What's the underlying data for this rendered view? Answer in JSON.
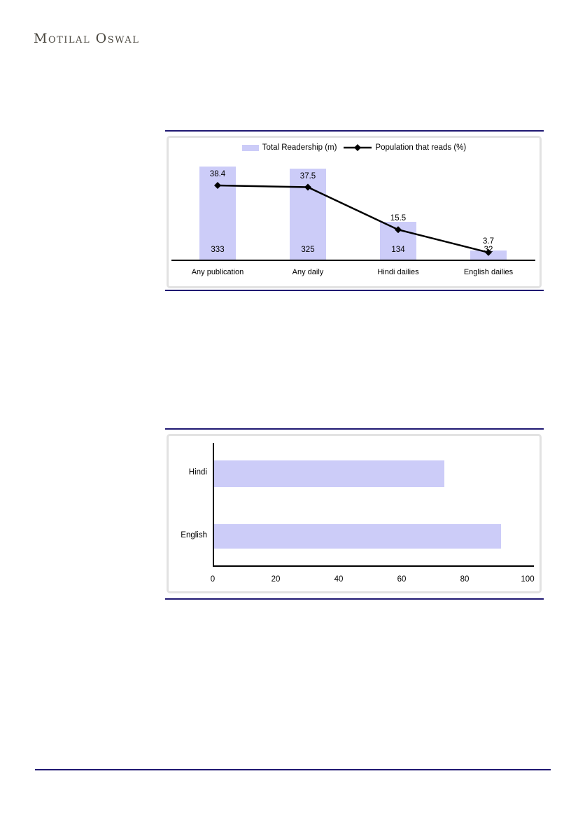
{
  "logo": {
    "text": "Motilal Oswal"
  },
  "colors": {
    "accent_navy": "#1f1872",
    "bar_fill": "#ccccf8",
    "frame_border": "#e2e2e2",
    "line_series": "#000000",
    "logo_text": "#4a473f"
  },
  "chart_data": [
    {
      "type": "bar",
      "subtype": "combo-bar-line",
      "categories": [
        "Any publication",
        "Any daily",
        "Hindi dailies",
        "English dailies"
      ],
      "series": [
        {
          "name": "Total Readership (m)",
          "type": "bar",
          "color": "#ccccf8",
          "values": [
            333,
            325,
            134,
            32
          ]
        },
        {
          "name": "Population that reads (%)",
          "type": "line",
          "color": "#000000",
          "marker": "diamond",
          "values": [
            38.4,
            37.5,
            15.5,
            3.7
          ]
        }
      ],
      "legend_position": "top",
      "grid": false,
      "data_labels": true
    },
    {
      "type": "bar",
      "orientation": "horizontal",
      "categories": [
        "Hindi",
        "English"
      ],
      "values": [
        73,
        91
      ],
      "bar_color": "#ccccf8",
      "xlim": [
        0,
        100
      ],
      "xticks": [
        0,
        20,
        40,
        60,
        80,
        100
      ],
      "grid": false,
      "data_labels": false
    }
  ]
}
